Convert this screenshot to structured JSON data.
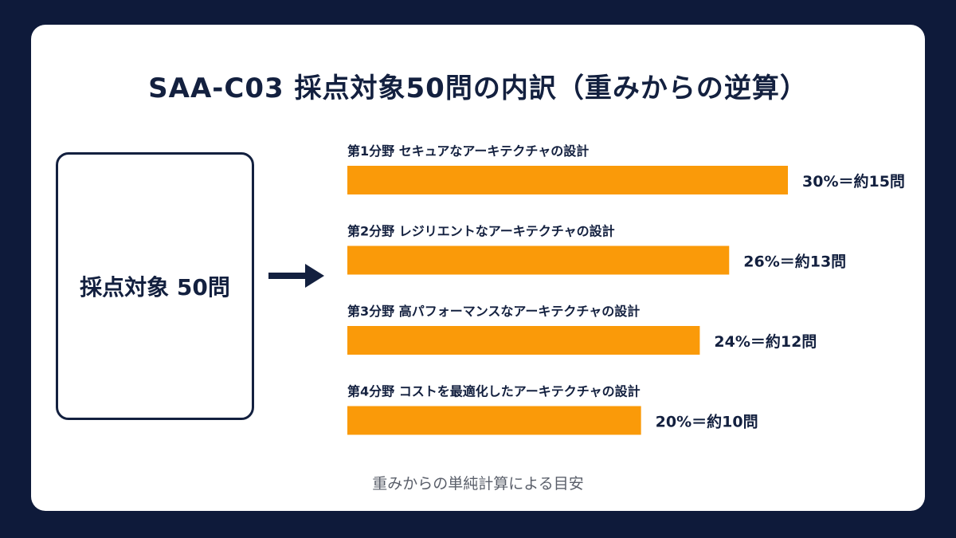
{
  "title": "SAA-C03 採点対象50問の内訳（重みからの逆算）",
  "scope_label": "採点対象 50問",
  "note": "重みからの単純計算による目安",
  "colors": {
    "bar": "#fa9a09",
    "navy": "#13203f",
    "background": "#0e1a3a"
  },
  "chart_data": {
    "type": "bar",
    "orientation": "horizontal",
    "categories": [
      "第1分野 セキュアなアーキテクチャの設計",
      "第2分野 レジリエントなアーキテクチャの設計",
      "第3分野 高パフォーマンスなアーキテクチャの設計",
      "第4分野 コストを最適化したアーキテクチャの設計"
    ],
    "values": [
      30,
      26,
      24,
      20
    ],
    "data_labels": [
      "30%＝約15問",
      "26%＝約13問",
      "24%＝約12問",
      "20%＝約10問"
    ],
    "xlim": [
      0,
      30
    ],
    "grid": false
  }
}
